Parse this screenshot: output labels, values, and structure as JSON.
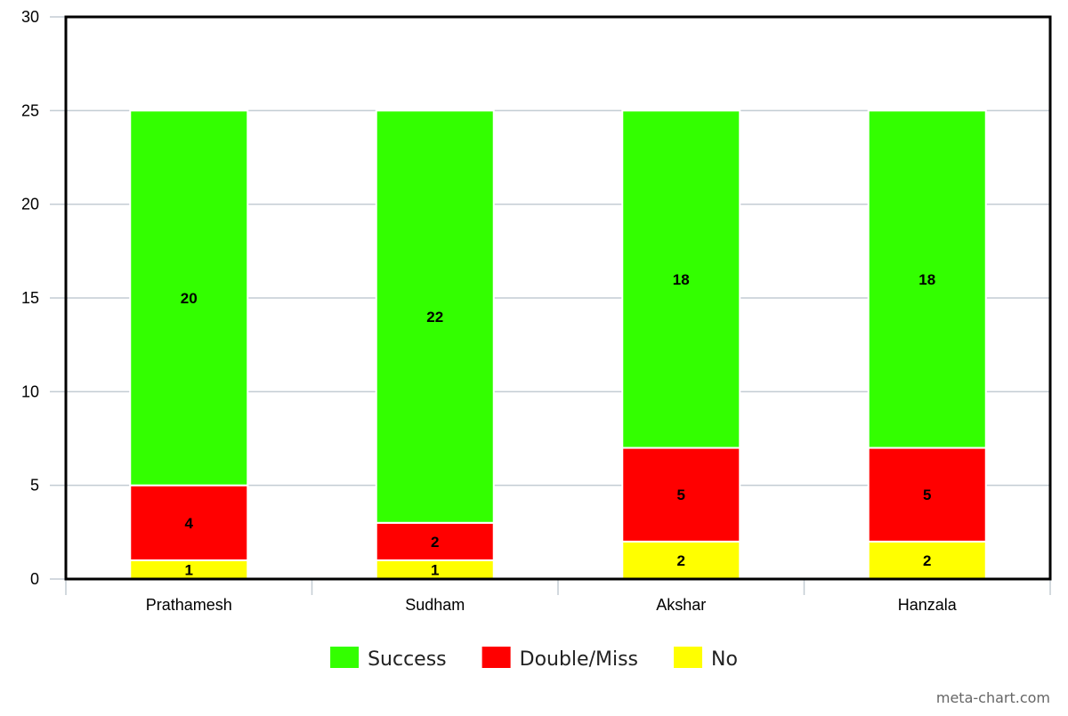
{
  "chart_data": {
    "type": "bar",
    "stacked": true,
    "categories": [
      "Prathamesh",
      "Sudham",
      "Akshar",
      "Hanzala"
    ],
    "series": [
      {
        "name": "No",
        "values": [
          1,
          1,
          2,
          2
        ],
        "color": "#ffff00"
      },
      {
        "name": "Double/Miss",
        "values": [
          4,
          2,
          5,
          5
        ],
        "color": "#ff0000"
      },
      {
        "name": "Success",
        "values": [
          20,
          22,
          18,
          18
        ],
        "color": "#33ff00"
      }
    ],
    "legend_order": [
      "Success",
      "Double/Miss",
      "No"
    ],
    "y_ticks": [
      0,
      5,
      10,
      15,
      20,
      25,
      30
    ],
    "ylim": [
      0,
      30
    ],
    "title": "",
    "xlabel": "",
    "ylabel": "",
    "grid": true,
    "legend_position": "bottom",
    "data_labels": true
  },
  "credit": "meta-chart.com",
  "colors": {
    "grid": "#c3ccd3",
    "axis": "#000000",
    "tick_mark": "#c3ccd3"
  }
}
